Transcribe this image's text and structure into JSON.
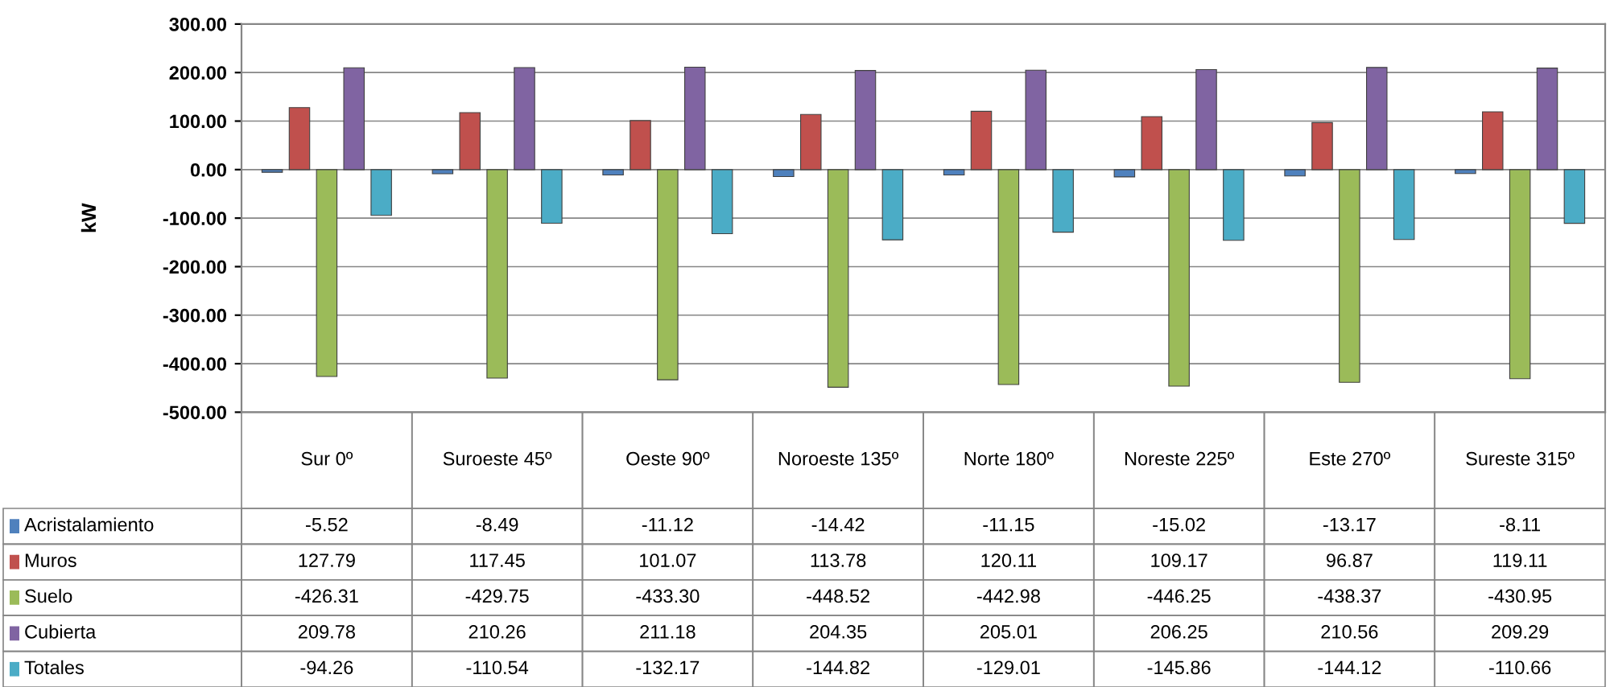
{
  "chart_data": {
    "type": "bar",
    "ylabel": "kW",
    "categories": [
      "Sur 0º",
      "Suroeste 45º",
      "Oeste 90º",
      "Noroeste 135º",
      "Norte 180º",
      "Noreste 225º",
      "Este 270º",
      "Sureste 315º"
    ],
    "series": [
      {
        "name": "Acristalamiento",
        "color": "#4f81bd",
        "values": [
          -5.52,
          -8.49,
          -11.12,
          -14.42,
          -11.15,
          -15.02,
          -13.17,
          -8.11
        ],
        "value_labels": [
          "-5.52",
          "-8.49",
          "-11.12",
          "-14.42",
          "-11.15",
          "-15.02",
          "-13.17",
          "-8.11"
        ]
      },
      {
        "name": "Muros",
        "color": "#c0504d",
        "values": [
          127.79,
          117.45,
          101.07,
          113.78,
          120.11,
          109.17,
          96.87,
          119.11
        ],
        "value_labels": [
          "127.79",
          "117.45",
          "101.07",
          "113.78",
          "120.11",
          "109.17",
          "96.87",
          "119.11"
        ]
      },
      {
        "name": "Suelo",
        "color": "#9bbb59",
        "values": [
          -426.31,
          -429.75,
          -433.3,
          -448.52,
          -442.98,
          -446.25,
          -438.37,
          -430.95
        ],
        "value_labels": [
          "-426.31",
          "-429.75",
          "-433.30",
          "-448.52",
          "-442.98",
          "-446.25",
          "-438.37",
          "-430.95"
        ]
      },
      {
        "name": "Cubierta",
        "color": "#8064a2",
        "values": [
          209.78,
          210.26,
          211.18,
          204.35,
          205.01,
          206.25,
          210.56,
          209.29
        ],
        "value_labels": [
          "209.78",
          "210.26",
          "211.18",
          "204.35",
          "205.01",
          "206.25",
          "210.56",
          "209.29"
        ]
      },
      {
        "name": "Totales",
        "color": "#4bacc6",
        "values": [
          -94.26,
          -110.54,
          -132.17,
          -144.82,
          -129.01,
          -145.86,
          -144.12,
          -110.66
        ],
        "value_labels": [
          "-94.26",
          "-110.54",
          "-132.17",
          "-144.82",
          "-129.01",
          "-145.86",
          "-144.12",
          "-110.66"
        ]
      }
    ],
    "ylim": [
      -500,
      300
    ],
    "yticks": [
      {
        "value": -500,
        "label": "-500.00"
      },
      {
        "value": -400,
        "label": "-400.00"
      },
      {
        "value": -300,
        "label": "-300.00"
      },
      {
        "value": -200,
        "label": "-200.00"
      },
      {
        "value": -100,
        "label": "-100.00"
      },
      {
        "value": 0,
        "label": "0.00"
      },
      {
        "value": 100,
        "label": "100.00"
      },
      {
        "value": 200,
        "label": "200.00"
      },
      {
        "value": 300,
        "label": "300.00"
      }
    ],
    "grid": "y",
    "legend": "bottom left"
  }
}
